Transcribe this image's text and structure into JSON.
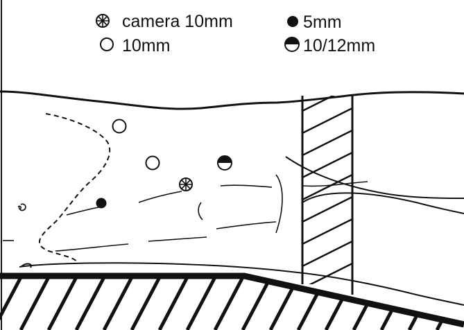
{
  "legend": {
    "camera_port": {
      "label": "camera 10mm",
      "icon": "circle-with-cross-icon"
    },
    "port_5mm": {
      "label": "5mm",
      "icon": "filled-circle-icon"
    },
    "port_10mm": {
      "label": "10mm",
      "icon": "open-circle-icon"
    },
    "port_10_12mm": {
      "label": "10/12mm",
      "icon": "half-filled-circle-icon"
    }
  },
  "colors": {
    "ink": "#111111",
    "background": "#ffffff"
  }
}
